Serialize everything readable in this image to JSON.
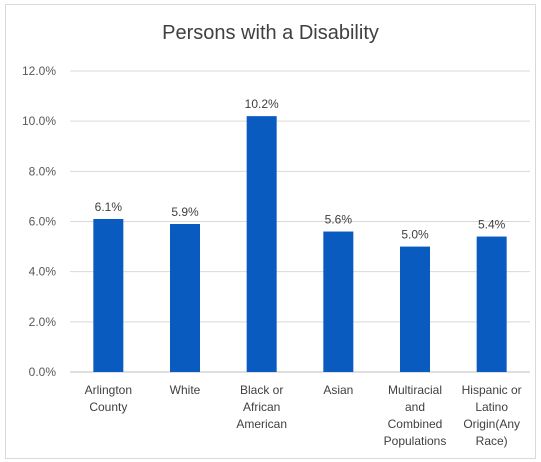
{
  "chart_data": {
    "type": "bar",
    "title": "Persons with a Disability",
    "xlabel": "",
    "ylabel": "",
    "categories": [
      [
        "Arlington",
        "County"
      ],
      [
        "White"
      ],
      [
        "Black or",
        "African",
        "American"
      ],
      [
        "Asian"
      ],
      [
        "Multiracial",
        "and",
        "Combined",
        "Populations"
      ],
      [
        "Hispanic or",
        "Latino",
        "Origin(Any",
        "Race)"
      ]
    ],
    "values": [
      6.1,
      5.9,
      10.2,
      5.6,
      5.0,
      5.4
    ],
    "data_labels": [
      "6.1%",
      "5.9%",
      "10.2%",
      "5.6%",
      "5.0%",
      "5.4%"
    ],
    "ylim": [
      0,
      12
    ],
    "yticks": [
      0,
      2,
      4,
      6,
      8,
      10,
      12
    ],
    "ytick_labels": [
      "0.0%",
      "2.0%",
      "4.0%",
      "6.0%",
      "8.0%",
      "10.0%",
      "12.0%"
    ],
    "grid": true,
    "legend": "none",
    "colors": {
      "bar": "#0A5BBF",
      "grid": "#d9d9d9",
      "axis": "#bfbfbf"
    }
  }
}
